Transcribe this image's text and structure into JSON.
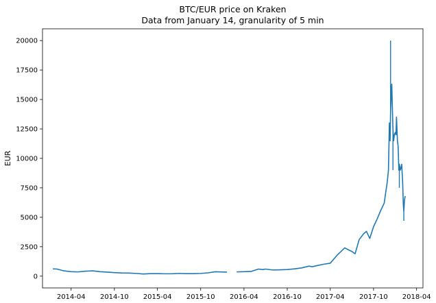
{
  "chart_data": {
    "type": "line",
    "title": "BTC/EUR price on Kraken",
    "subtitle": "Data from January 14, granularity of 5 min",
    "xlabel": "",
    "ylabel": "EUR",
    "xlim": [
      "2013-12-01",
      "2018-04-28"
    ],
    "ylim": [
      -1000,
      21000
    ],
    "x_ticks": [
      {
        "date": "2014-04-01",
        "label": "2014-04"
      },
      {
        "date": "2014-10-01",
        "label": "2014-10"
      },
      {
        "date": "2015-04-01",
        "label": "2015-04"
      },
      {
        "date": "2015-10-01",
        "label": "2015-10"
      },
      {
        "date": "2016-04-01",
        "label": "2016-04"
      },
      {
        "date": "2016-10-01",
        "label": "2016-10"
      },
      {
        "date": "2017-04-01",
        "label": "2017-04"
      },
      {
        "date": "2017-10-01",
        "label": "2017-10"
      },
      {
        "date": "2018-04-01",
        "label": "2018-04"
      }
    ],
    "y_ticks": [
      0,
      2500,
      5000,
      7500,
      10000,
      12500,
      15000,
      17500,
      20000
    ],
    "grid": false,
    "series": [
      {
        "color": "#1f77b4",
        "x": [
          "2014-01-14",
          "2014-02-01",
          "2014-03-01",
          "2014-04-01",
          "2014-05-01",
          "2014-06-01",
          "2014-07-01",
          "2014-08-01",
          "2014-09-01",
          "2014-10-01",
          "2014-11-01",
          "2014-12-01",
          "2015-01-01",
          "2015-02-01",
          "2015-03-01",
          "2015-04-01",
          "2015-05-01",
          "2015-06-01",
          "2015-07-01",
          "2015-08-01",
          "2015-09-01",
          "2015-10-01",
          "2015-11-01",
          "2015-12-01",
          "2016-01-20",
          "2016-02-10",
          "2016-03-01",
          "2016-04-01",
          "2016-05-01",
          "2016-06-01",
          "2016-06-20",
          "2016-07-01",
          "2016-08-01",
          "2016-09-01",
          "2016-10-01",
          "2016-11-01",
          "2016-12-01",
          "2017-01-01",
          "2017-01-15",
          "2017-02-01",
          "2017-03-01",
          "2017-04-01",
          "2017-05-01",
          "2017-06-01",
          "2017-06-20",
          "2017-07-01",
          "2017-07-15",
          "2017-08-01",
          "2017-08-20",
          "2017-09-01",
          "2017-09-15",
          "2017-10-01",
          "2017-10-15",
          "2017-11-01",
          "2017-11-15",
          "2017-11-28",
          "2017-12-03",
          "2017-12-07",
          "2017-12-10",
          "2017-12-12",
          "2017-12-14",
          "2017-12-17",
          "2017-12-20",
          "2017-12-22",
          "2017-12-25",
          "2017-12-28",
          "2018-01-01",
          "2018-01-04",
          "2018-01-06",
          "2018-01-10",
          "2018-01-13",
          "2018-01-16",
          "2018-01-18",
          "2018-01-22",
          "2018-01-25",
          "2018-01-28",
          "2018-02-01",
          "2018-02-04",
          "2018-02-06",
          "2018-02-09",
          "2018-02-12"
        ],
        "y": [
          620,
          600,
          450,
          380,
          360,
          420,
          450,
          380,
          340,
          300,
          270,
          260,
          230,
          180,
          210,
          210,
          200,
          200,
          230,
          210,
          210,
          230,
          280,
          370,
          340,
          null,
          360,
          380,
          400,
          600,
          560,
          600,
          520,
          540,
          560,
          620,
          700,
          850,
          800,
          880,
          1000,
          1100,
          1800,
          2400,
          2200,
          2100,
          1900,
          3100,
          3600,
          3800,
          3200,
          4200,
          4800,
          5600,
          6200,
          8000,
          9000,
          13000,
          11500,
          14000,
          15000,
          16300,
          14000,
          12500,
          11500,
          12000,
          12200,
          12000,
          13500,
          11500,
          11000,
          9000,
          9500,
          9000,
          9200,
          9500,
          8000,
          6000,
          5500,
          6500,
          6800
        ]
      }
    ],
    "spikes": [
      {
        "x": "2017-12-12",
        "y": 20000
      },
      {
        "x": "2017-12-19",
        "y": 14500
      },
      {
        "x": "2017-12-22",
        "y": 9000
      },
      {
        "x": "2018-01-18",
        "y": 7500
      },
      {
        "x": "2018-02-06",
        "y": 4700
      }
    ]
  }
}
